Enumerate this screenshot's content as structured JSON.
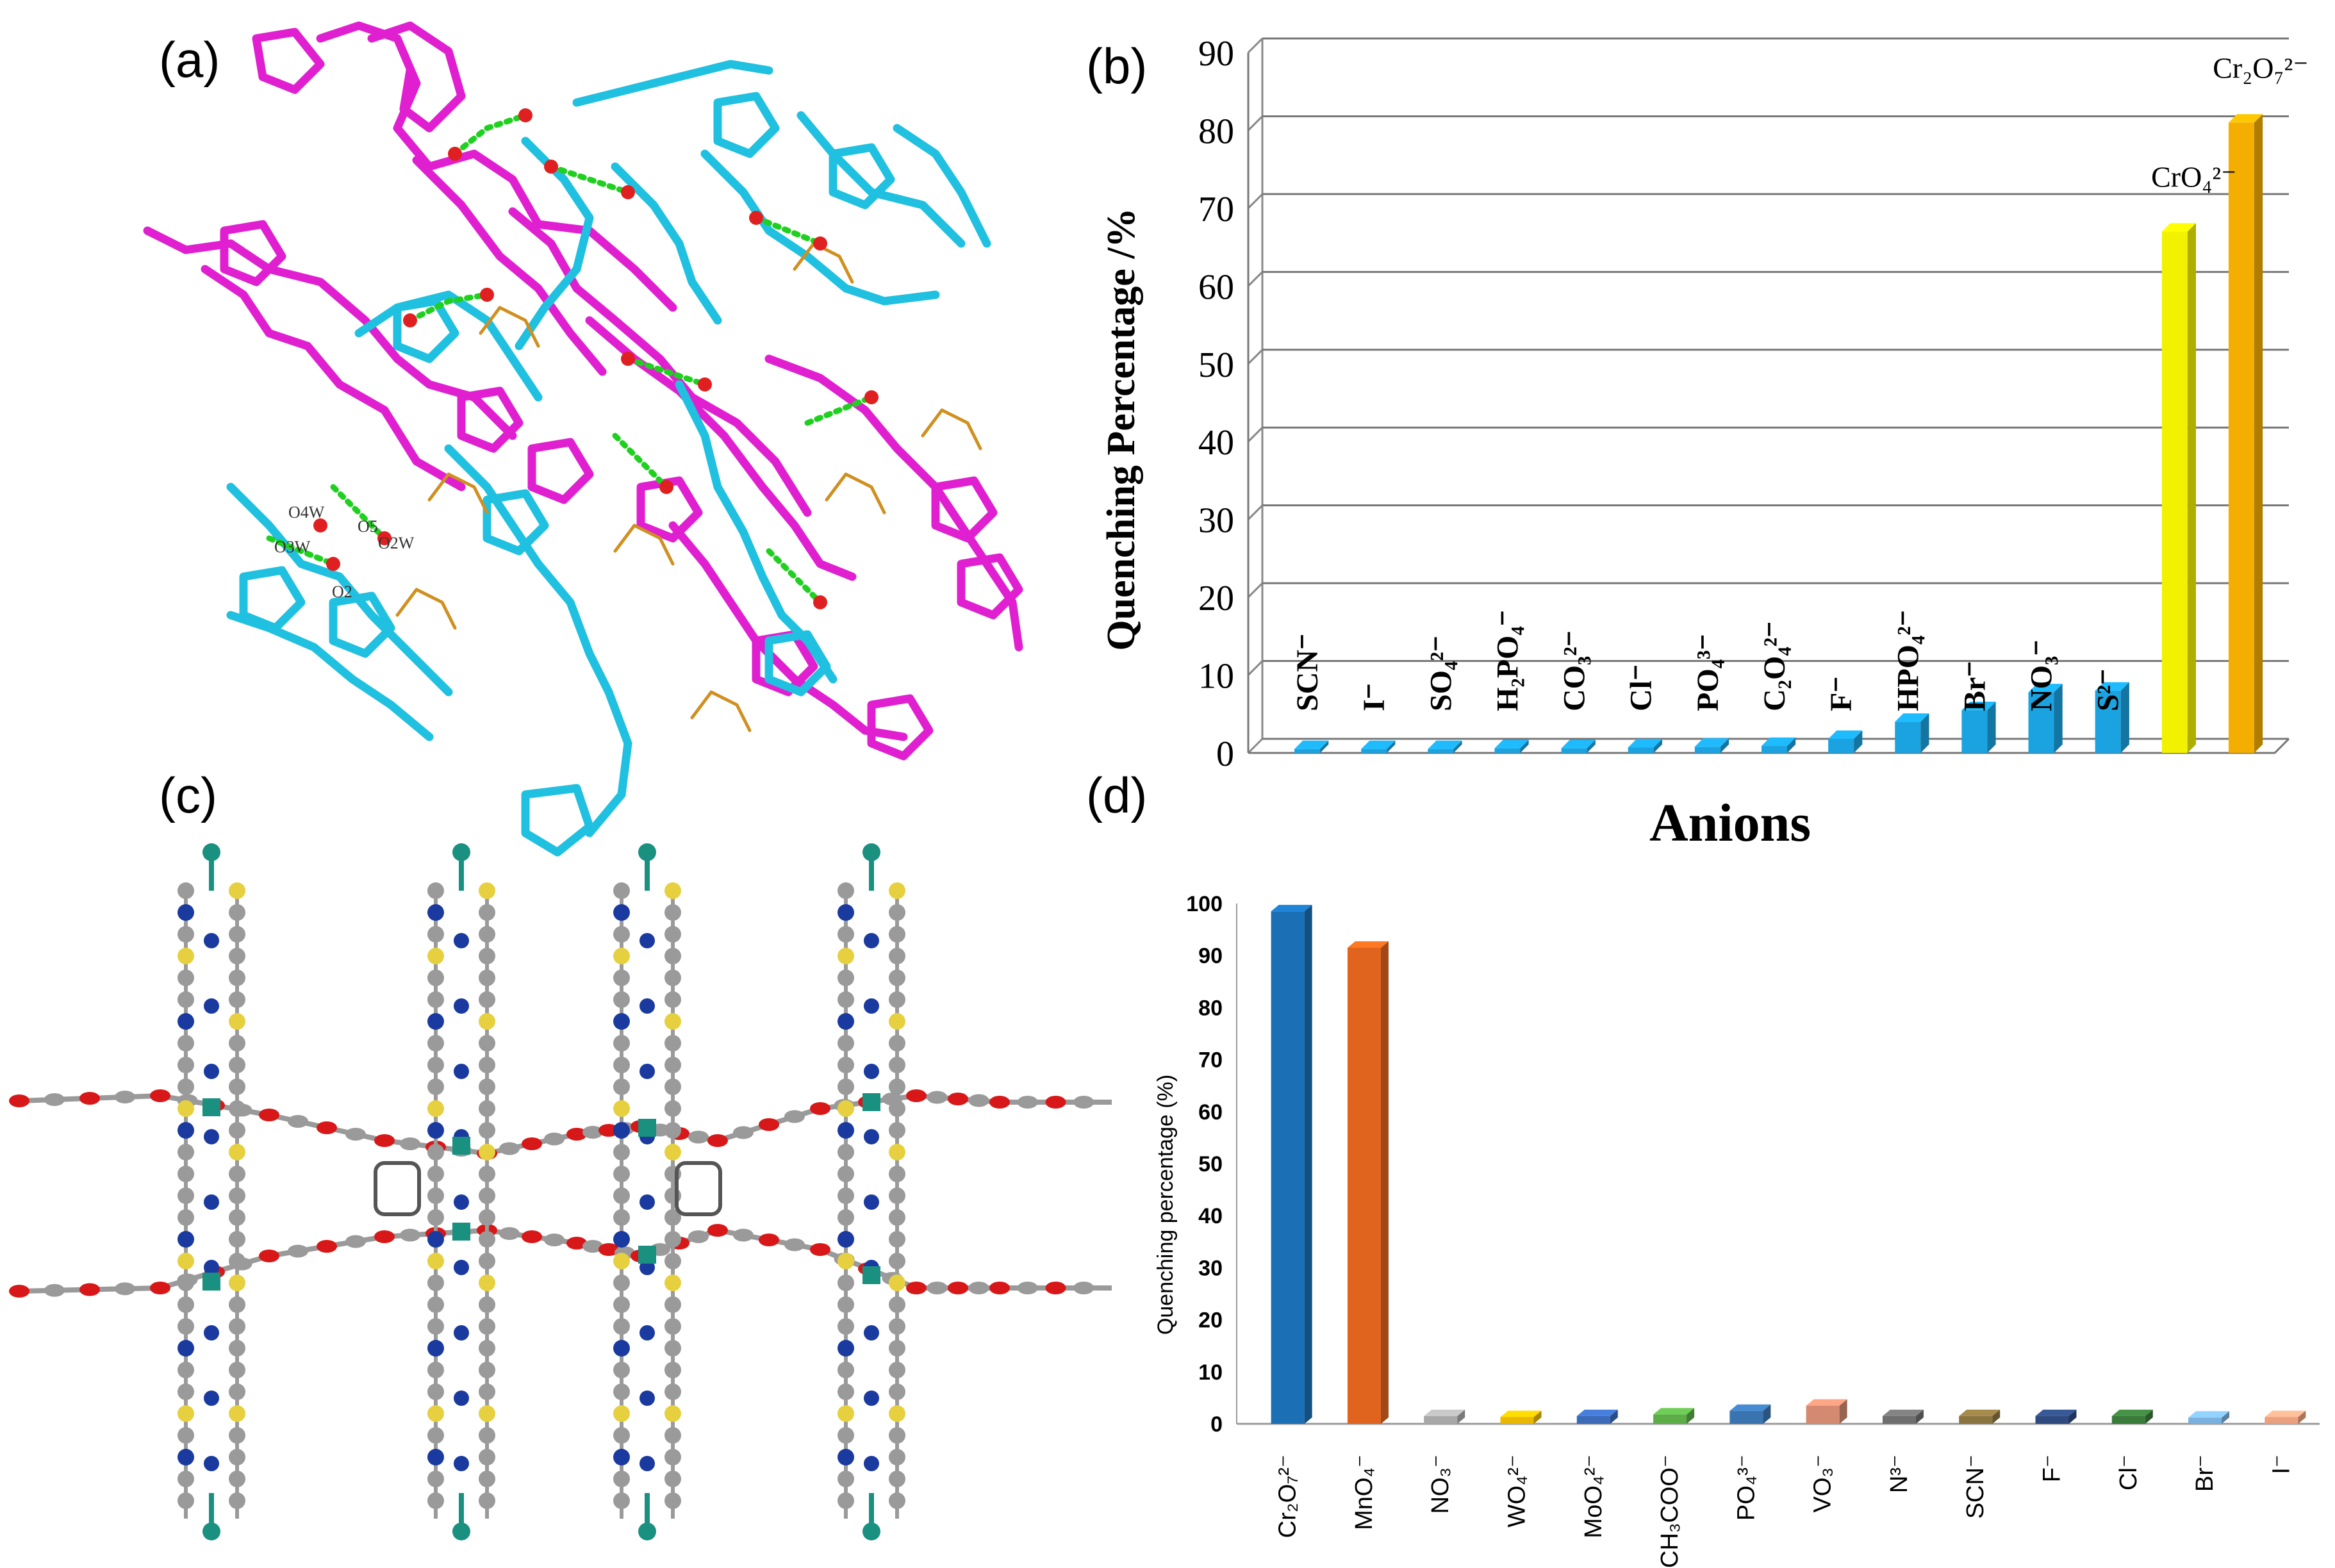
{
  "panels": {
    "a_label": "(a)",
    "b_label": "(b)",
    "c_label": "(c)",
    "d_label": "(d)"
  },
  "structure_a": {
    "atom_labels": [
      "O4W",
      "O5",
      "O3W",
      "O2W",
      "O2"
    ],
    "colors": {
      "framework_1": "#e020d0",
      "framework_2": "#20c0e0",
      "guest": "#d09020",
      "oxygen": "#e02020",
      "hbond": "#20d020"
    }
  },
  "structure_c": {
    "colors": {
      "carbon": "#9a9a9a",
      "nitrogen": "#1a3aa0",
      "sulfur": "#e6d040",
      "metal": "#1a9080",
      "oxygen": "#d81818"
    }
  },
  "chart_data": [
    {
      "type": "bar",
      "title": "",
      "xlabel": "Anions",
      "ylabel": "Quenching Percentage /%",
      "ylim": [
        0,
        90
      ],
      "yticks": [
        "0",
        "10",
        "20",
        "30",
        "40",
        "50",
        "60",
        "70",
        "80",
        "90"
      ],
      "grid": true,
      "categories": [
        "SCN⁻",
        "I⁻",
        "SO₄²⁻",
        "H₂PO₄⁻",
        "CO₃²⁻",
        "Cl⁻",
        "PO₄³⁻",
        "C₂O₄²⁻",
        "F⁻",
        "HPO₄²⁻",
        "Br⁻",
        "NO₃⁻",
        "S²⁻",
        "CrO₄²⁻",
        "Cr₂O₇²⁻"
      ],
      "values": [
        0.5,
        0.5,
        0.5,
        0.6,
        0.6,
        0.7,
        0.8,
        0.9,
        1.8,
        4.0,
        5.5,
        7.8,
        8.0,
        67,
        81
      ],
      "colors": [
        "#1aa3e0",
        "#1aa3e0",
        "#1aa3e0",
        "#1aa3e0",
        "#1aa3e0",
        "#1aa3e0",
        "#1aa3e0",
        "#1aa3e0",
        "#1aa3e0",
        "#1aa3e0",
        "#1aa3e0",
        "#1aa3e0",
        "#1aa3e0",
        "#f2f200",
        "#f4ae00"
      ]
    },
    {
      "type": "bar",
      "title": "",
      "xlabel": "",
      "ylabel": "Quenching percentage (%)",
      "ylim": [
        0,
        100
      ],
      "yticks": [
        "0",
        "10",
        "20",
        "30",
        "40",
        "50",
        "60",
        "70",
        "80",
        "90",
        "100"
      ],
      "grid": false,
      "categories": [
        "Cr₂O₇²⁻",
        "MnO₄⁻",
        "NO₃⁻",
        "WO₄²⁻",
        "MoO₄²⁻",
        "CH₃COO⁻",
        "PO₄³⁻",
        "VO₃⁻",
        "N³⁻",
        "SCN⁻",
        "F⁻",
        "Cl⁻",
        "Br⁻",
        "I⁻"
      ],
      "values": [
        98.5,
        91.5,
        1.5,
        1.3,
        1.5,
        1.8,
        2.5,
        3.5,
        1.5,
        1.5,
        1.5,
        1.5,
        1.2,
        1.3
      ],
      "colors": [
        "#1a6fb5",
        "#e0641e",
        "#a8a8a8",
        "#eab800",
        "#3a6ab8",
        "#5cac48",
        "#3a74b0",
        "#d48a70",
        "#6e6e6e",
        "#8a7440",
        "#2e4a7e",
        "#3a7a3a",
        "#7ab0de",
        "#eba080"
      ]
    }
  ]
}
